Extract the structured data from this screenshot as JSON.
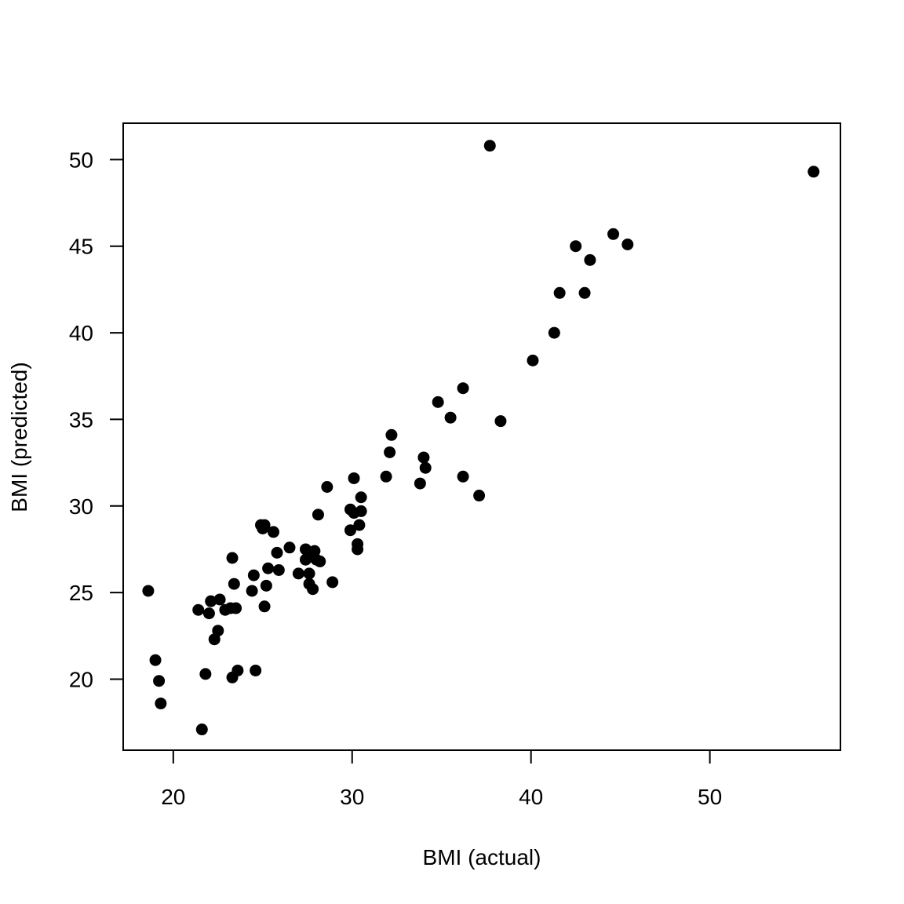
{
  "chart_data": {
    "type": "scatter",
    "xlabel": "BMI (actual)",
    "ylabel": "BMI (predicted)",
    "xlim": [
      17.2,
      57.3
    ],
    "ylim": [
      15.9,
      52.1
    ],
    "xticks": [
      20,
      30,
      40,
      50
    ],
    "yticks": [
      20,
      25,
      30,
      35,
      40,
      45,
      50
    ],
    "grid": false,
    "point_color": "#000000",
    "points": [
      {
        "x": 18.6,
        "y": 25.1
      },
      {
        "x": 19.0,
        "y": 21.1
      },
      {
        "x": 19.2,
        "y": 19.9
      },
      {
        "x": 19.3,
        "y": 18.6
      },
      {
        "x": 21.4,
        "y": 24.0
      },
      {
        "x": 21.6,
        "y": 17.1
      },
      {
        "x": 21.8,
        "y": 20.3
      },
      {
        "x": 22.0,
        "y": 23.8
      },
      {
        "x": 22.1,
        "y": 24.5
      },
      {
        "x": 22.3,
        "y": 22.3
      },
      {
        "x": 22.5,
        "y": 22.8
      },
      {
        "x": 22.6,
        "y": 24.6
      },
      {
        "x": 22.9,
        "y": 24.0
      },
      {
        "x": 23.2,
        "y": 24.1
      },
      {
        "x": 23.3,
        "y": 27.0
      },
      {
        "x": 23.3,
        "y": 20.1
      },
      {
        "x": 23.4,
        "y": 25.5
      },
      {
        "x": 23.5,
        "y": 24.1
      },
      {
        "x": 23.6,
        "y": 20.5
      },
      {
        "x": 24.4,
        "y": 25.1
      },
      {
        "x": 24.5,
        "y": 26.0
      },
      {
        "x": 24.6,
        "y": 20.5
      },
      {
        "x": 24.9,
        "y": 28.9
      },
      {
        "x": 25.0,
        "y": 28.7
      },
      {
        "x": 25.1,
        "y": 24.2
      },
      {
        "x": 25.1,
        "y": 28.9
      },
      {
        "x": 25.2,
        "y": 25.4
      },
      {
        "x": 25.3,
        "y": 26.4
      },
      {
        "x": 25.6,
        "y": 28.5
      },
      {
        "x": 25.8,
        "y": 27.3
      },
      {
        "x": 25.9,
        "y": 26.3
      },
      {
        "x": 26.5,
        "y": 27.6
      },
      {
        "x": 27.0,
        "y": 26.1
      },
      {
        "x": 27.4,
        "y": 27.5
      },
      {
        "x": 27.4,
        "y": 26.9
      },
      {
        "x": 27.6,
        "y": 26.1
      },
      {
        "x": 27.6,
        "y": 25.5
      },
      {
        "x": 27.7,
        "y": 27.2
      },
      {
        "x": 27.8,
        "y": 25.2
      },
      {
        "x": 27.9,
        "y": 27.4
      },
      {
        "x": 28.0,
        "y": 26.9
      },
      {
        "x": 28.1,
        "y": 29.5
      },
      {
        "x": 28.2,
        "y": 26.8
      },
      {
        "x": 28.6,
        "y": 31.1
      },
      {
        "x": 28.9,
        "y": 25.6
      },
      {
        "x": 29.9,
        "y": 28.6
      },
      {
        "x": 29.9,
        "y": 29.8
      },
      {
        "x": 30.1,
        "y": 29.6
      },
      {
        "x": 30.1,
        "y": 31.6
      },
      {
        "x": 30.3,
        "y": 27.5
      },
      {
        "x": 30.3,
        "y": 27.8
      },
      {
        "x": 30.4,
        "y": 28.9
      },
      {
        "x": 30.5,
        "y": 29.7
      },
      {
        "x": 30.5,
        "y": 30.5
      },
      {
        "x": 31.9,
        "y": 31.7
      },
      {
        "x": 32.1,
        "y": 33.1
      },
      {
        "x": 32.2,
        "y": 34.1
      },
      {
        "x": 33.8,
        "y": 31.3
      },
      {
        "x": 34.0,
        "y": 32.8
      },
      {
        "x": 34.1,
        "y": 32.2
      },
      {
        "x": 34.8,
        "y": 36.0
      },
      {
        "x": 35.5,
        "y": 35.1
      },
      {
        "x": 36.2,
        "y": 36.8
      },
      {
        "x": 36.2,
        "y": 31.7
      },
      {
        "x": 37.1,
        "y": 30.6
      },
      {
        "x": 37.7,
        "y": 50.8
      },
      {
        "x": 38.3,
        "y": 34.9
      },
      {
        "x": 40.1,
        "y": 38.4
      },
      {
        "x": 41.3,
        "y": 40.0
      },
      {
        "x": 41.6,
        "y": 42.3
      },
      {
        "x": 42.5,
        "y": 45.0
      },
      {
        "x": 43.0,
        "y": 42.3
      },
      {
        "x": 43.3,
        "y": 44.2
      },
      {
        "x": 44.6,
        "y": 45.7
      },
      {
        "x": 45.4,
        "y": 45.1
      },
      {
        "x": 55.8,
        "y": 49.3
      }
    ]
  }
}
